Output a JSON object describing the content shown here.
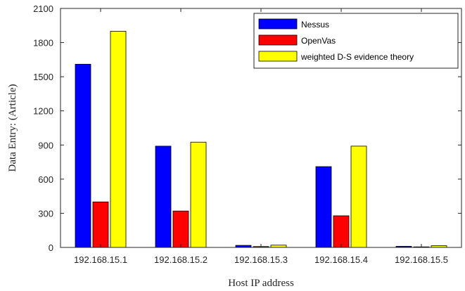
{
  "chart_data": {
    "type": "bar",
    "categories": [
      "192.168.15.1",
      "192.168.15.2",
      "192.168.15.3",
      "192.168.15.4",
      "192.168.15.5"
    ],
    "series": [
      {
        "name": "Nessus",
        "color": "#0000ff",
        "values": [
          1610,
          890,
          18,
          710,
          10
        ]
      },
      {
        "name": "OpenVas",
        "color": "#ff0000",
        "values": [
          400,
          320,
          8,
          278,
          5
        ]
      },
      {
        "name": "weighted D-S evidence theory",
        "color": "#ffff00",
        "values": [
          1900,
          925,
          20,
          890,
          15
        ]
      }
    ],
    "xlabel": "Host IP address",
    "ylabel": "Data Entry: (Article)",
    "ylim": [
      0,
      2100
    ],
    "yticks": [
      "0",
      "300",
      "600",
      "900",
      "1200",
      "1500",
      "1800",
      "2100"
    ],
    "grid": false,
    "legend_position": "top-right"
  }
}
